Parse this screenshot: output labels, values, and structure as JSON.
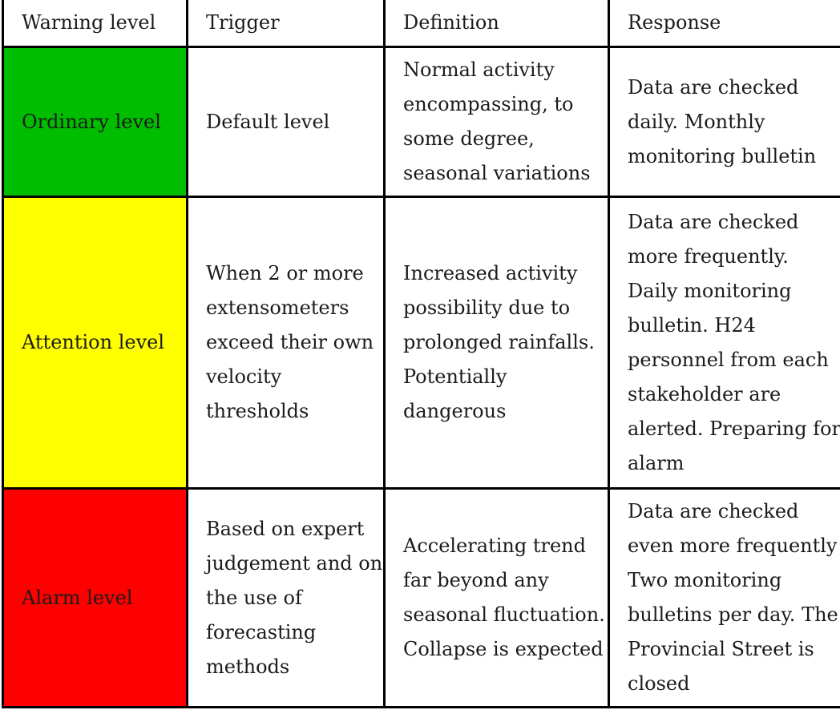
{
  "table": {
    "columns": [
      {
        "label": "Warning level"
      },
      {
        "label": "Trigger"
      },
      {
        "label": "Definition"
      },
      {
        "label": "Response"
      }
    ],
    "rows": [
      {
        "level": "Ordinary level",
        "color": "#00bd00",
        "trigger": "Default level",
        "definition": "Normal activity\nencompassing, to\nsome degree,\nseasonal variations",
        "response": "Data are checked\ndaily. Monthly\nmonitoring bulletin"
      },
      {
        "level": "Attention level",
        "color": "#ffff00",
        "trigger": "When 2 or more\nextensometers\nexceed their own\nvelocity\nthresholds",
        "definition": "Increased activity\npossibility due to\nprolonged rainfalls.\nPotentially\ndangerous",
        "response": "Data are checked\nmore frequently.\nDaily monitoring\nbulletin. H24\npersonnel from each\nstakeholder are\nalerted. Preparing for\nalarm"
      },
      {
        "level": "Alarm level",
        "color": "#ff0000",
        "trigger": "Based on expert\njudgement and on\nthe use of\nforecasting\nmethods",
        "definition": "Accelerating trend\nfar beyond any\nseasonal fluctuation.\nCollapse is expected",
        "response": "Data are checked\neven more frequently\nTwo monitoring\nbulletins per day. The\nProvincial Street is\nclosed"
      }
    ]
  },
  "colors": {
    "border": "#000000",
    "text": "#1b1b1b",
    "header_background": "#ffffff",
    "ordinary_green": "#00bd00",
    "attention_yellow": "#ffff00",
    "alarm_red": "#ff0000"
  }
}
